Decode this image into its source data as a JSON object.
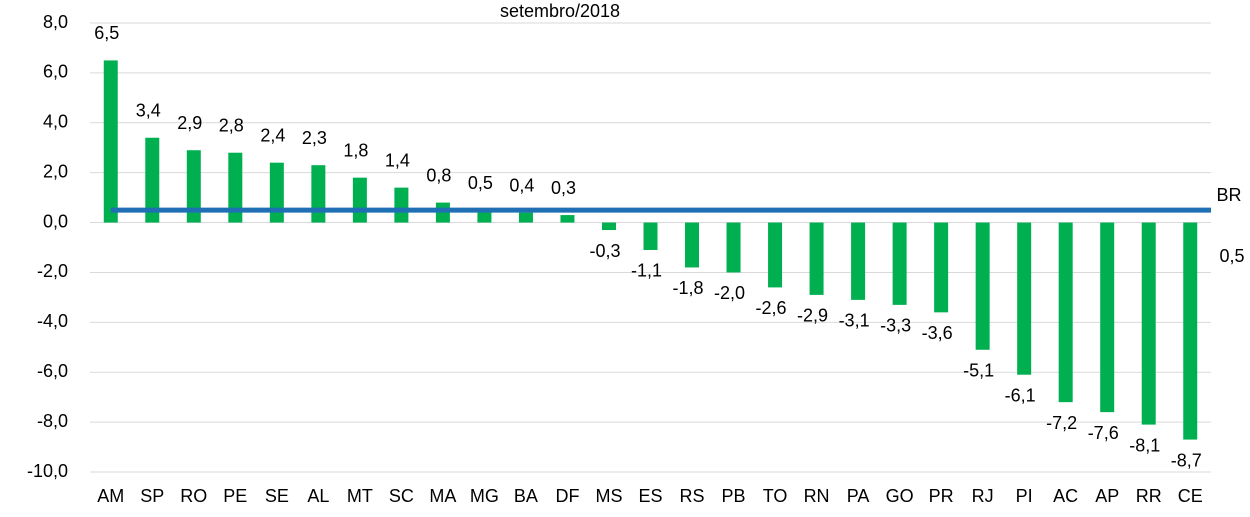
{
  "chart_data": {
    "type": "bar",
    "title": "setembro/2018",
    "categories": [
      "AM",
      "SP",
      "RO",
      "PE",
      "SE",
      "AL",
      "MT",
      "SC",
      "MA",
      "MG",
      "BA",
      "DF",
      "MS",
      "ES",
      "RS",
      "PB",
      "TO",
      "RN",
      "PA",
      "GO",
      "PR",
      "RJ",
      "PI",
      "AC",
      "AP",
      "RR",
      "CE"
    ],
    "values": [
      6.5,
      3.4,
      2.9,
      2.8,
      2.4,
      2.3,
      1.8,
      1.4,
      0.8,
      0.5,
      0.4,
      0.3,
      -0.3,
      -1.1,
      -1.8,
      -2.0,
      -2.6,
      -2.9,
      -3.1,
      -3.3,
      -3.6,
      -5.1,
      -6.1,
      -7.2,
      -7.6,
      -8.1,
      -8.7
    ],
    "value_labels": [
      "6,5",
      "3,4",
      "2,9",
      "2,8",
      "2,4",
      "2,3",
      "1,8",
      "1,4",
      "0,8",
      "0,5",
      "0,4",
      "0,3",
      "-0,3",
      "-1,1",
      "-1,8",
      "-2,0",
      "-2,6",
      "-2,9",
      "-3,1",
      "-3,3",
      "-3,6",
      "-5,1",
      "-6,1",
      "-7,2",
      "-7,6",
      "-8,1",
      "-8,7"
    ],
    "color": "#00b050",
    "ylim": [
      -10,
      8
    ],
    "yticks": [
      {
        "value": -10,
        "label": "-10,0"
      },
      {
        "value": -8,
        "label": "-8,0"
      },
      {
        "value": -6,
        "label": "-6,0"
      },
      {
        "value": -4,
        "label": "-4,0"
      },
      {
        "value": -2,
        "label": "-2,0"
      },
      {
        "value": 0,
        "label": "0,0"
      },
      {
        "value": 2,
        "label": "2,0"
      },
      {
        "value": 4,
        "label": "4,0"
      },
      {
        "value": 6,
        "label": "6,0"
      },
      {
        "value": 8,
        "label": "8,0"
      }
    ],
    "grid": true,
    "reference_line": {
      "name": "BR",
      "value": 0.5,
      "value_label": "0,5",
      "color": "#1f6fb5"
    }
  }
}
